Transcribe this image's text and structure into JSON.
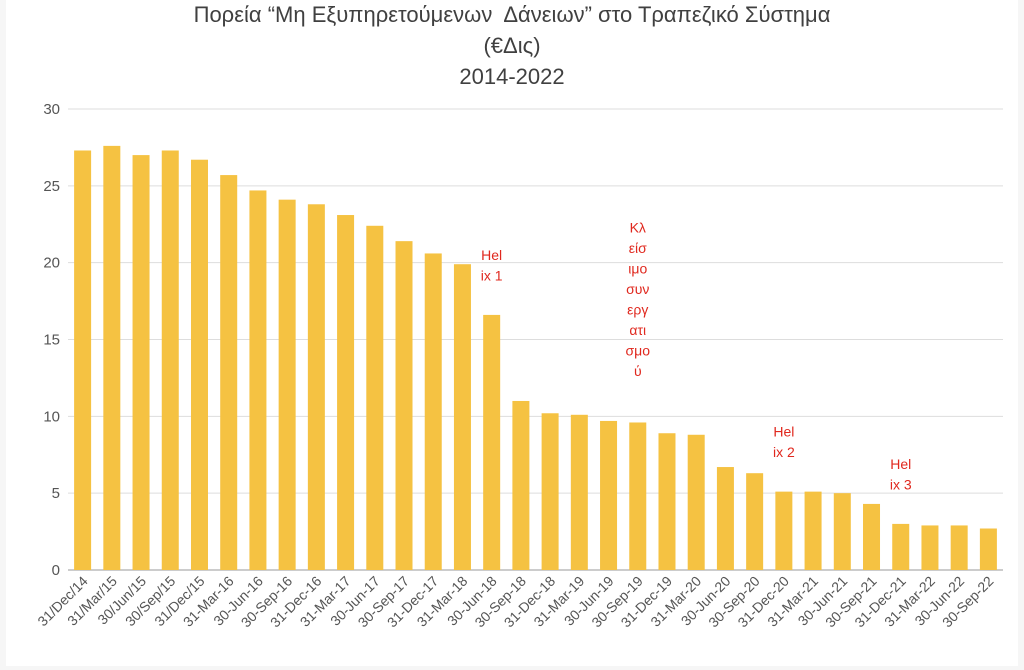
{
  "chart_data": {
    "type": "bar",
    "title_lines": [
      "Πορεία “Μη Εξυπηρετούμενων  Δάνειων” στο Τραπεζικό Σύστημα",
      "(€Δις)",
      "2014-2022"
    ],
    "categories": [
      "31/Dec/14",
      "31/Mar/15",
      "30/Jun/15",
      "30/Sep/15",
      "31/Dec/15",
      "31-Mar-16",
      "30-Jun-16",
      "30-Sep-16",
      "31-Dec-16",
      "31-Mar-17",
      "30-Jun-17",
      "30-Sep-17",
      "31-Dec-17",
      "31-Mar-18",
      "30-Jun-18",
      "30-Sep-18",
      "31-Dec-18",
      "31-Mar-19",
      "30-Jun-19",
      "30-Sep-19",
      "31-Dec-19",
      "31-Mar-20",
      "30-Jun-20",
      "30-Sep-20",
      "31-Dec-20",
      "31-Mar-21",
      "30-Jun-21",
      "30-Sep-21",
      "31-Dec-21",
      "31-Mar-22",
      "30-Jun-22",
      "30-Sep-22"
    ],
    "values": [
      27.3,
      27.6,
      27.0,
      27.3,
      26.7,
      25.7,
      24.7,
      24.1,
      23.8,
      23.1,
      22.4,
      21.4,
      20.6,
      19.9,
      16.6,
      11.0,
      10.2,
      10.1,
      9.7,
      9.6,
      8.9,
      8.8,
      6.7,
      6.3,
      5.1,
      5.1,
      5.0,
      4.3,
      3.0,
      2.9,
      2.9,
      2.7
    ],
    "yticks": [
      "0",
      "5",
      "10",
      "15",
      "20",
      "25",
      "30"
    ],
    "ylim": [
      0,
      30
    ],
    "grid": true,
    "bar_color": "#f5c242",
    "annotations": [
      {
        "lines": [
          "Hel",
          "ix 1"
        ],
        "category_index": 14
      },
      {
        "lines": [
          "Κλ",
          "είσ",
          "ιμο",
          "συν",
          "εργ",
          "ατι",
          "σμο",
          "ύ"
        ],
        "category_index": 19
      },
      {
        "lines": [
          "Hel",
          "ix 2"
        ],
        "category_index": 24
      },
      {
        "lines": [
          "Hel",
          "ix 3"
        ],
        "category_index": 28
      }
    ],
    "annotation_color": "#e0281e"
  }
}
